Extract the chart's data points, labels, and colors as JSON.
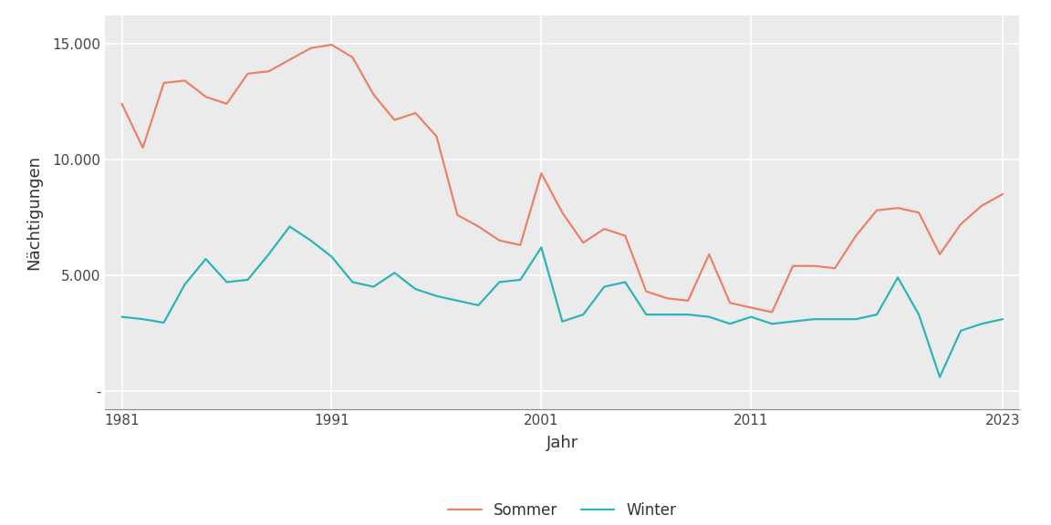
{
  "years": [
    1981,
    1982,
    1983,
    1984,
    1985,
    1986,
    1987,
    1988,
    1989,
    1990,
    1991,
    1992,
    1993,
    1994,
    1995,
    1996,
    1997,
    1998,
    1999,
    2000,
    2001,
    2002,
    2003,
    2004,
    2005,
    2006,
    2007,
    2008,
    2009,
    2010,
    2011,
    2012,
    2013,
    2014,
    2015,
    2016,
    2017,
    2018,
    2019,
    2020,
    2021,
    2022,
    2023
  ],
  "sommer": [
    12400,
    10500,
    13300,
    13400,
    12700,
    12400,
    13700,
    13800,
    14300,
    14800,
    14950,
    14400,
    12800,
    11700,
    12000,
    11000,
    7600,
    7100,
    6500,
    6300,
    9400,
    7700,
    6400,
    7000,
    6700,
    4300,
    4000,
    3900,
    5900,
    3800,
    3600,
    3400,
    5400,
    5400,
    5300,
    6700,
    7800,
    7900,
    7700,
    5900,
    7200,
    8000,
    8500
  ],
  "winter": [
    3200,
    3100,
    2950,
    4600,
    5700,
    4700,
    4800,
    5900,
    7100,
    6500,
    5800,
    4700,
    4500,
    5100,
    4400,
    4100,
    3900,
    3700,
    4700,
    4800,
    6200,
    3000,
    3300,
    4500,
    4700,
    3300,
    3300,
    3300,
    3200,
    2900,
    3200,
    2900,
    3000,
    3100,
    3100,
    3100,
    3300,
    4900,
    3300,
    600,
    2600,
    2900,
    3100
  ],
  "sommer_color": "#E8836A",
  "winter_color": "#2BB5B8",
  "plot_bg_color": "#EBEBEB",
  "fig_bg_color": "#FFFFFF",
  "xlabel": "Jahr",
  "ylabel": "Nächtigungen",
  "legend_sommer": "Sommer",
  "legend_winter": "Winter",
  "yticks": [
    0,
    5000,
    10000,
    15000
  ],
  "ytick_labels": [
    "-",
    "5.000",
    "10.000",
    "15.000"
  ],
  "xticks": [
    1981,
    1991,
    2001,
    2011,
    2023
  ],
  "ylim": [
    -800,
    16200
  ],
  "xlim": [
    1980.2,
    2023.8
  ]
}
